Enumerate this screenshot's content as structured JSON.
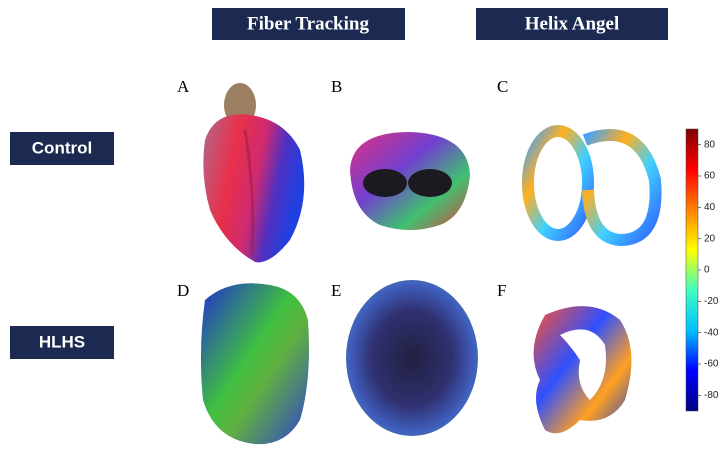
{
  "headers": [
    "Fiber Tracking",
    "Helix Angel"
  ],
  "rows": [
    "Control",
    "HLHS"
  ],
  "panels": [
    "A",
    "B",
    "C",
    "D",
    "E",
    "F"
  ],
  "colorbar": {
    "ylim": [
      -90,
      90
    ],
    "yticks": [
      80,
      60,
      40,
      20,
      0,
      -20,
      -40,
      -60,
      -80
    ],
    "colors": [
      "#00007f",
      "#0000ff",
      "#00bfff",
      "#40ffbf",
      "#ffff00",
      "#ff8000",
      "#ff0000",
      "#7f0000"
    ]
  }
}
